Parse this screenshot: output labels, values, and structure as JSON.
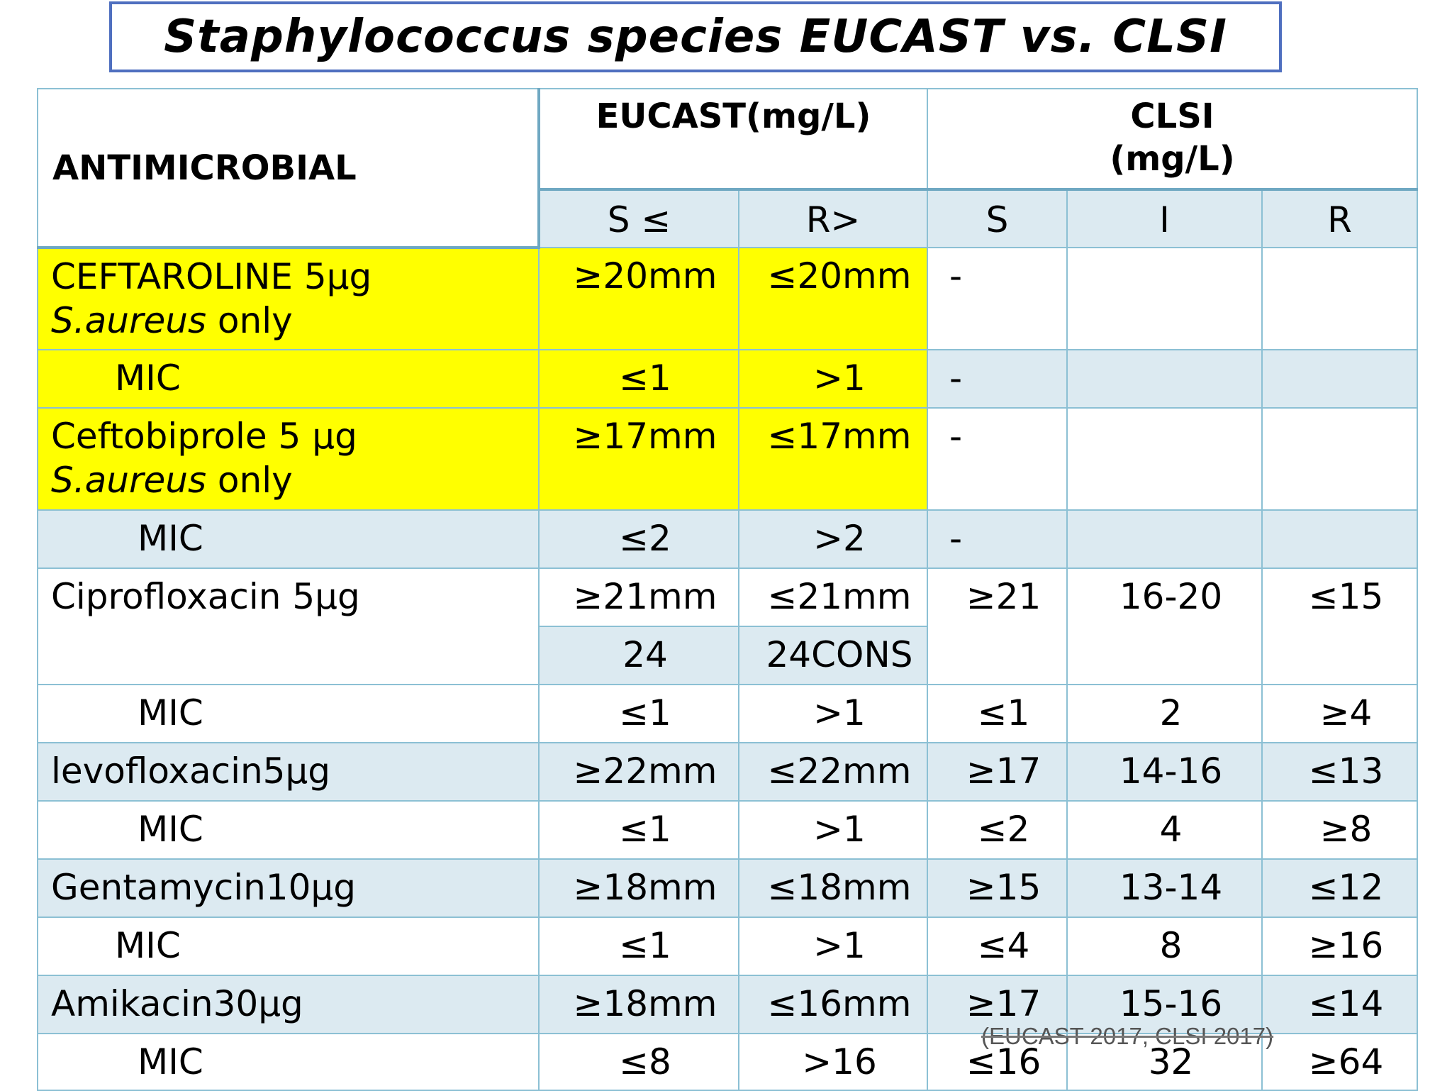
{
  "title": "Staphylococcus species EUCAST vs. CLSI",
  "citation": "(EUCAST 2017, CLSI 2017)",
  "header": {
    "antimicrobial": "ANTIMICROBIAL",
    "eucast": "EUCAST(mg/L)",
    "clsi_line1": "CLSI",
    "clsi_line2": "(mg/L)",
    "sub": [
      "S ≤",
      "R>",
      "S",
      "I",
      "R"
    ]
  },
  "rows": {
    "ceftaroline": {
      "name": "CEFTAROLINE 5µg",
      "note": "S.aureus only",
      "eu_s": "≥20mm",
      "eu_r": "≤20mm",
      "clsi_s": "-"
    },
    "ceftaroline_mic": {
      "name": "MIC",
      "eu_s": "≤1",
      "eu_r": ">1",
      "clsi_s": "-"
    },
    "ceftobiprole": {
      "name": "Ceftobiprole 5 µg",
      "note": "S.aureus only",
      "eu_s": "≥17mm",
      "eu_r": "≤17mm",
      "clsi_s": "-"
    },
    "ceftobiprole_mic": {
      "name": "MIC",
      "eu_s": "≤2",
      "eu_r": ">2",
      "clsi_s": "-"
    },
    "ciprofloxacin": {
      "name": "Ciprofloxacin 5µg",
      "eu_s": "≥21mm",
      "eu_r": "≤21mm",
      "eu_s2": "24",
      "eu_r2": "24CONS",
      "clsi_s": "≥21",
      "clsi_i": "16-20",
      "clsi_r": "≤15"
    },
    "ciprofloxacin_mic": {
      "name": "MIC",
      "eu_s": "≤1",
      "eu_r": ">1",
      "clsi_s": "≤1",
      "clsi_i": "2",
      "clsi_r": "≥4"
    },
    "levofloxacin": {
      "name": "levofloxacin5µg",
      "eu_s": "≥22mm",
      "eu_r": "≤22mm",
      "clsi_s": "≥17",
      "clsi_i": "14-16",
      "clsi_r": "≤13"
    },
    "levofloxacin_mic": {
      "name": "MIC",
      "eu_s": "≤1",
      "eu_r": ">1",
      "clsi_s": "≤2",
      "clsi_i": "4",
      "clsi_r": "≥8"
    },
    "gentamycin": {
      "name": "Gentamycin10µg",
      "eu_s": "≥18mm",
      "eu_r": "≤18mm",
      "clsi_s": "≥15",
      "clsi_i": "13-14",
      "clsi_r": "≤12"
    },
    "gentamycin_mic": {
      "name": "MIC",
      "eu_s": "≤1",
      "eu_r": ">1",
      "clsi_s": "≤4",
      "clsi_i": "8",
      "clsi_r": "≥16"
    },
    "amikacin": {
      "name": "Amikacin30µg",
      "eu_s": "≥18mm",
      "eu_r": "≤16mm",
      "clsi_s": "≥17",
      "clsi_i": "15-16",
      "clsi_r": "≤14"
    },
    "amikacin_mic": {
      "name": "MIC",
      "eu_s": "≤8",
      "eu_r": ">16",
      "clsi_s": "≤16",
      "clsi_i": "32",
      "clsi_r": "≥64"
    }
  },
  "colors": {
    "title_border": "#4F6FBF",
    "grid": "#8CC0D4",
    "shaded_row": "#DCEAF1",
    "highlight": "#FFFF00"
  }
}
